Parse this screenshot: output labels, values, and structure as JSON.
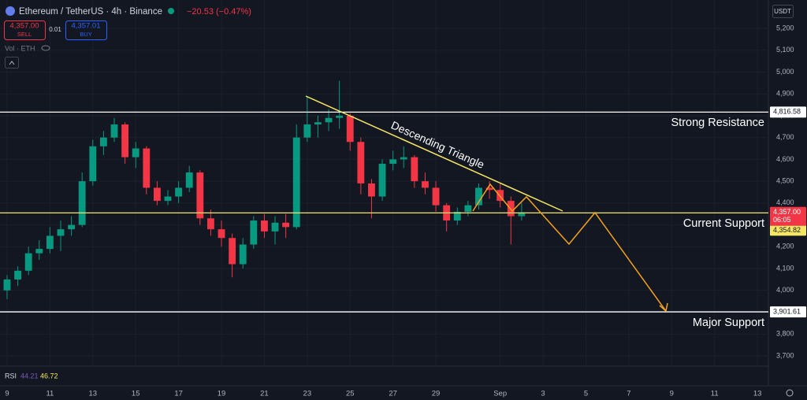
{
  "chart_data": {
    "type": "candlestick",
    "title": "Ethereum / TetherUS · 4h · Binance",
    "change": "−20.53 (−0.47%)",
    "sell_price": "4,357.00",
    "sell_label": "SELL",
    "spread": "0.01",
    "buy_price": "4,357.01",
    "buy_label": "BUY",
    "volume_label": "Vol · ETH",
    "currency": "USDT",
    "rsi": {
      "label": "RSI",
      "values": [
        "44.21",
        "46.72"
      ]
    },
    "annotation": "Descending Triangle",
    "up_color": "#089981",
    "down_color": "#f23645",
    "x": [
      9,
      9.5,
      10,
      10.5,
      11,
      11.5,
      12,
      12.5,
      13,
      13.5,
      14,
      14.5,
      15,
      15.5,
      16,
      16.5,
      17,
      17.5,
      18,
      18.5,
      19,
      19.5,
      20,
      20.5,
      21,
      21.5,
      22,
      22.5,
      23,
      23.5,
      24,
      24.5,
      25,
      25.5,
      26,
      26.5,
      27,
      27.5,
      28,
      28.5,
      29,
      29.5,
      30,
      30.5,
      31,
      31.5,
      32,
      32.5,
      33
    ],
    "open": [
      4000,
      4050,
      4090,
      4170,
      4190,
      4250,
      4280,
      4300,
      4500,
      4660,
      4700,
      4760,
      4610,
      4650,
      4470,
      4410,
      4430,
      4470,
      4540,
      4330,
      4280,
      4240,
      4120,
      4210,
      4320,
      4270,
      4310,
      4290,
      4700,
      4760,
      4770,
      4790,
      4800,
      4680,
      4490,
      4430,
      4580,
      4600,
      4610,
      4500,
      4470,
      4390,
      4320,
      4360,
      4390,
      4470,
      4460,
      4410,
      4340
    ],
    "high": [
      4070,
      4110,
      4200,
      4230,
      4290,
      4320,
      4340,
      4540,
      4690,
      4730,
      4790,
      4770,
      4680,
      4660,
      4500,
      4460,
      4500,
      4570,
      4550,
      4370,
      4320,
      4260,
      4240,
      4340,
      4350,
      4340,
      4350,
      4760,
      4890,
      4800,
      4830,
      4960,
      4810,
      4700,
      4510,
      4600,
      4640,
      4660,
      4620,
      4540,
      4500,
      4400,
      4380,
      4410,
      4490,
      4500,
      4490,
      4430,
      4400
    ],
    "low": [
      3960,
      4020,
      4070,
      4140,
      4170,
      4180,
      4250,
      4290,
      4480,
      4620,
      4680,
      4580,
      4560,
      4440,
      4390,
      4390,
      4400,
      4450,
      4300,
      4250,
      4200,
      4060,
      4100,
      4190,
      4240,
      4210,
      4240,
      4280,
      4680,
      4700,
      4730,
      4740,
      4640,
      4440,
      4330,
      4410,
      4550,
      4560,
      4470,
      4440,
      4360,
      4270,
      4300,
      4340,
      4370,
      4420,
      4380,
      4210,
      4320
    ],
    "close": [
      4050,
      4090,
      4170,
      4190,
      4250,
      4280,
      4300,
      4500,
      4660,
      4700,
      4760,
      4610,
      4650,
      4470,
      4410,
      4430,
      4470,
      4540,
      4330,
      4280,
      4240,
      4120,
      4210,
      4320,
      4270,
      4310,
      4290,
      4700,
      4760,
      4770,
      4790,
      4800,
      4680,
      4490,
      4430,
      4580,
      4600,
      4610,
      4500,
      4470,
      4390,
      4320,
      4360,
      4390,
      4470,
      4460,
      4410,
      4340,
      4357
    ],
    "xlim": [
      8.67,
      44.51
    ],
    "xticks": [
      9,
      11,
      13,
      15,
      17,
      19,
      21,
      23,
      25,
      27,
      29,
      {
        "value": 32,
        "label": "Sep"
      },
      {
        "value": 34,
        "label": "3"
      },
      {
        "value": 36,
        "label": "5"
      },
      {
        "value": 38,
        "label": "7"
      },
      {
        "value": 40,
        "label": "9"
      },
      {
        "value": 42,
        "label": "11"
      },
      {
        "value": 44,
        "label": "13"
      }
    ],
    "ylim": [
      3653,
      5330
    ],
    "yticks": [
      {
        "value": 3700,
        "label": "3,700"
      },
      {
        "value": 3800,
        "label": "3,800"
      },
      {
        "value": 3900,
        "label": "3,900"
      },
      {
        "value": 4000,
        "label": "4,000"
      },
      {
        "value": 4100,
        "label": "4,100"
      },
      {
        "value": 4200,
        "label": "4,200"
      },
      {
        "value": 4300,
        "label": "4,300"
      },
      {
        "value": 4400,
        "label": "4,400"
      },
      {
        "value": 4500,
        "label": "4,500"
      },
      {
        "value": 4600,
        "label": "4,600"
      },
      {
        "value": 4700,
        "label": "4,700"
      },
      {
        "value": 4800,
        "label": "4,800"
      },
      {
        "value": 4900,
        "label": "4,900"
      },
      {
        "value": 5000,
        "label": "5,000"
      },
      {
        "value": 5100,
        "label": "5,100"
      },
      {
        "value": 5200,
        "label": "5,200"
      }
    ],
    "grid": true,
    "hlines": [
      {
        "name": "Strong Resistance",
        "value": 4816.58,
        "label": "4,816.58",
        "color": "#ffffff"
      },
      {
        "name": "Current Support",
        "value": 4354.82,
        "label": "4,354.82",
        "color": "#f5e663"
      },
      {
        "name": "Major Support",
        "value": 3901.61,
        "label": "3,901.61",
        "color": "#ffffff"
      }
    ],
    "last_price": {
      "value": 4357,
      "label": "4,357.00",
      "countdown": "06:05",
      "color": "#f23645"
    }
  }
}
